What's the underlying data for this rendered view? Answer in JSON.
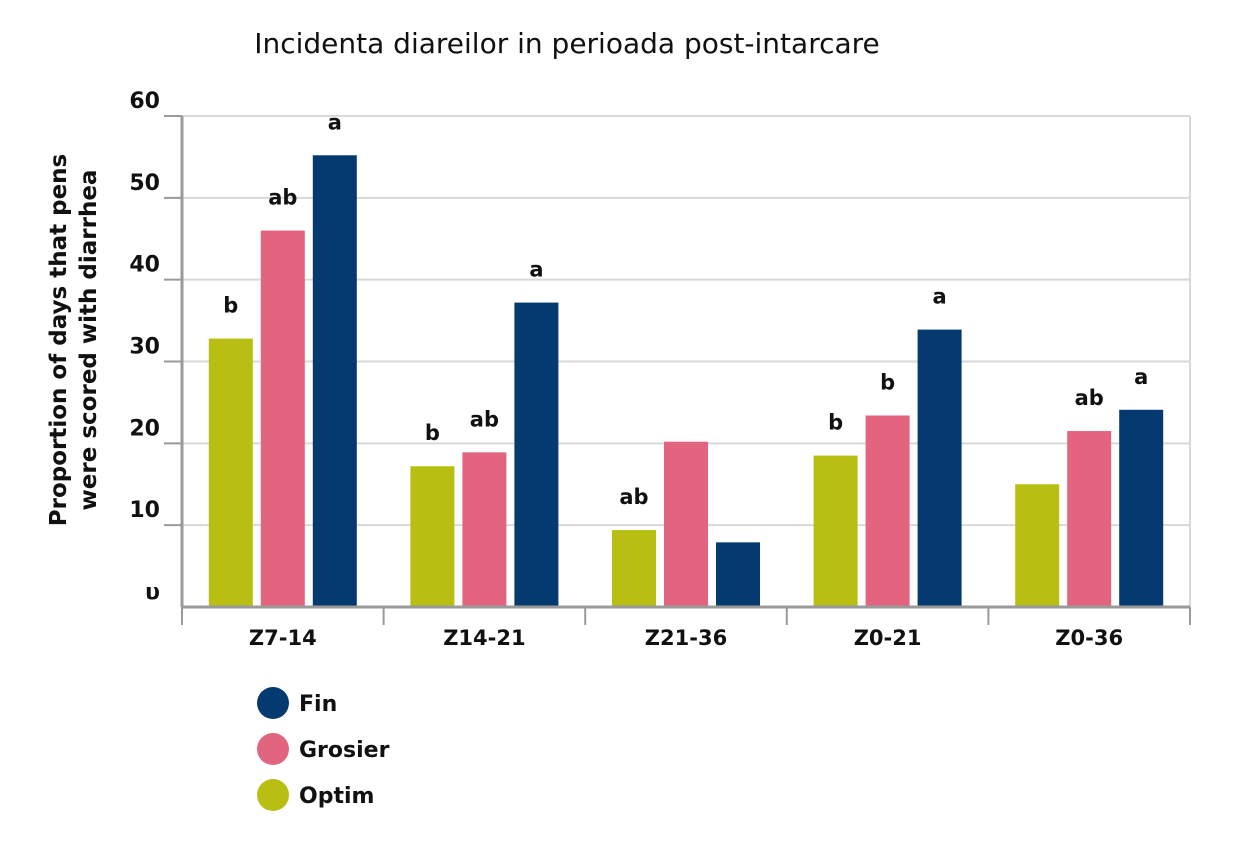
{
  "chart_data": {
    "type": "bar",
    "title": "Incidenta diareilor in perioada post-intarcare",
    "ylabel_lines": [
      "Proportion of days that pens",
      "were scored with diarrhea"
    ],
    "y_tick_labels": [
      "υ",
      "10",
      "20",
      "30",
      "40",
      "50",
      "60"
    ],
    "ylim": [
      0,
      60
    ],
    "grid": true,
    "legend_position": "bottom-left",
    "categories": [
      "Z7-14",
      "Z14-21",
      "Z21-36",
      "Z0-21",
      "Z0-36"
    ],
    "series": [
      {
        "name": "Optim",
        "color": "#b8bf12",
        "values": [
          32.8,
          17.2,
          9.4,
          18.5,
          15.0
        ],
        "labels": [
          "b",
          "b",
          "ab",
          "b",
          ""
        ]
      },
      {
        "name": "Grosier",
        "color": "#e3647f",
        "values": [
          46,
          18.9,
          20.2,
          23.4,
          21.5
        ],
        "labels": [
          "ab",
          "ab",
          "",
          "b",
          "ab"
        ]
      },
      {
        "name": "Fin",
        "color": "#043a70",
        "values": [
          55.2,
          37.2,
          7.9,
          33.9,
          24.1
        ],
        "labels": [
          "a",
          "a",
          "",
          "a",
          "a"
        ]
      }
    ],
    "legend_order": [
      "Fin",
      "Grosier",
      "Optim"
    ]
  }
}
